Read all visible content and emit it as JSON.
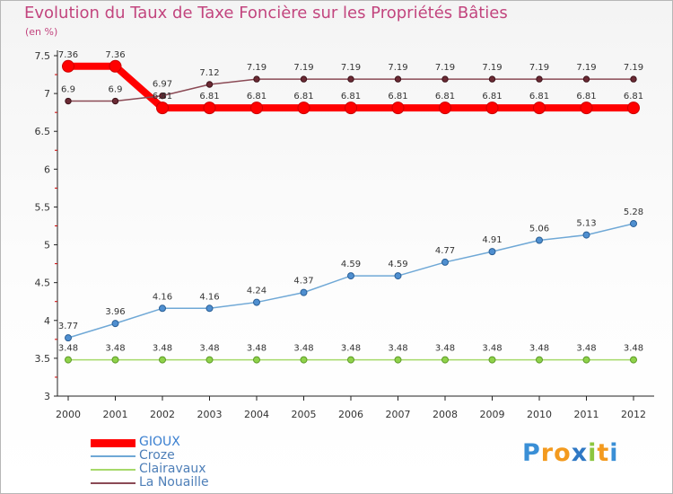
{
  "chart_data": {
    "type": "line",
    "title": "Evolution du Taux de Taxe Foncière sur les Propriétés Bâties",
    "unit_label": "(en %)",
    "x": [
      "2000",
      "2001",
      "2002",
      "2003",
      "2004",
      "2005",
      "2006",
      "2007",
      "2008",
      "2009",
      "2010",
      "2011",
      "2012"
    ],
    "ylim": [
      3,
      7.5
    ],
    "yticks": [
      "3",
      "3.5",
      "4",
      "4.5",
      "5",
      "5.5",
      "6",
      "6.5",
      "7",
      "7.5"
    ],
    "series": [
      {
        "name": "GIOUX",
        "color": "#ff0000",
        "values": [
          7.36,
          7.36,
          6.81,
          6.81,
          6.81,
          6.81,
          6.81,
          6.81,
          6.81,
          6.81,
          6.81,
          6.81,
          6.81
        ]
      },
      {
        "name": "Croze",
        "color": "#6fa8d6",
        "values": [
          3.77,
          3.96,
          4.16,
          4.16,
          4.24,
          4.37,
          4.59,
          4.59,
          4.77,
          4.91,
          5.06,
          5.13,
          5.28
        ]
      },
      {
        "name": "Clairavaux",
        "color": "#a6d96a",
        "values": [
          3.48,
          3.48,
          3.48,
          3.48,
          3.48,
          3.48,
          3.48,
          3.48,
          3.48,
          3.48,
          3.48,
          3.48,
          3.48
        ]
      },
      {
        "name": "La Nouaille",
        "color": "#8b4a55",
        "values": [
          6.9,
          6.9,
          6.97,
          7.12,
          7.19,
          7.19,
          7.19,
          7.19,
          7.19,
          7.19,
          7.19,
          7.19,
          7.19
        ]
      }
    ],
    "value_labels": {
      "GIOUX": [
        "7.36",
        "7.36",
        "6.81",
        "6.81",
        "6.81",
        "6.81",
        "6.81",
        "6.81",
        "6.81",
        "6.81",
        "6.81",
        "6.81",
        "6.81"
      ],
      "Croze": [
        "3.77",
        "3.96",
        "4.16",
        "4.16",
        "4.24",
        "4.37",
        "4.59",
        "4.59",
        "4.77",
        "4.91",
        "5.06",
        "5.13",
        "5.28"
      ],
      "Clairavaux": [
        "3.48",
        "3.48",
        "3.48",
        "3.48",
        "3.48",
        "3.48",
        "3.48",
        "3.48",
        "3.48",
        "3.48",
        "3.48",
        "3.48",
        "3.48"
      ],
      "La Nouaille": [
        "6.9",
        "6.9",
        "6.97",
        "7.12",
        "7.19",
        "7.19",
        "7.19",
        "7.19",
        "7.19",
        "7.19",
        "7.19",
        "7.19",
        "7.19"
      ]
    },
    "legend_position": "bottom-left"
  },
  "logo": {
    "letters": [
      "P",
      "r",
      "o",
      "x",
      "i",
      "t",
      "i"
    ],
    "colors": [
      "#3a8fd6",
      "#f39a1e",
      "#f39a1e",
      "#2f78c4",
      "#8cc63f",
      "#f39a1e",
      "#3a8fd6"
    ]
  }
}
